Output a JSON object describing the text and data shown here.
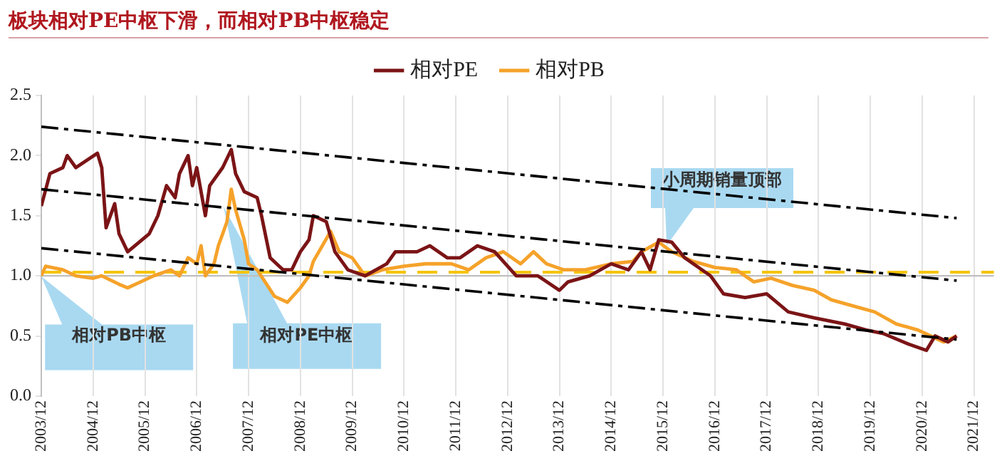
{
  "chart_data": {
    "type": "line",
    "title": "板块相对PE中枢下滑，而相对PB中枢稳定",
    "xlim": [
      "2003-12",
      "2021-12"
    ],
    "xticks": [
      {
        "value": "2003-12",
        "label": "2003/12"
      },
      {
        "value": "2004-12",
        "label": "2004/12"
      },
      {
        "value": "2005-12",
        "label": "2005/12"
      },
      {
        "value": "2006-12",
        "label": "2006/12"
      },
      {
        "value": "2007-12",
        "label": "2007/12"
      },
      {
        "value": "2008-12",
        "label": "2008/12"
      },
      {
        "value": "2009-12",
        "label": "2009/12"
      },
      {
        "value": "2010-12",
        "label": "2010/12"
      },
      {
        "value": "2011-12",
        "label": "2011/12"
      },
      {
        "value": "2012-12",
        "label": "2012/12"
      },
      {
        "value": "2013-12",
        "label": "2013/12"
      },
      {
        "value": "2014-12",
        "label": "2014/12"
      },
      {
        "value": "2015-12",
        "label": "2015/12"
      },
      {
        "value": "2016-12",
        "label": "2016/12"
      },
      {
        "value": "2017-12",
        "label": "2017/12"
      },
      {
        "value": "2018-12",
        "label": "2018/12"
      },
      {
        "value": "2019-12",
        "label": "2019/12"
      },
      {
        "value": "2020-12",
        "label": "2020/12"
      },
      {
        "value": "2021-12",
        "label": "2021/12"
      }
    ],
    "ylim": [
      0,
      2.5
    ],
    "yticks": [
      {
        "value": 0,
        "label": "0.0"
      },
      {
        "value": 0.5,
        "label": "0.5"
      },
      {
        "value": 1,
        "label": "1.0"
      },
      {
        "value": 1.5,
        "label": "1.5"
      },
      {
        "value": 2,
        "label": "2.0"
      },
      {
        "value": 2.5,
        "label": "2.5"
      }
    ],
    "grid": "x",
    "legend": "top",
    "marker": "none",
    "series": [
      {
        "name": "相对PE",
        "color": "#7b1416",
        "x": [
          "2003-12",
          "2004-02",
          "2004-05",
          "2004-06",
          "2004-08",
          "2005-01",
          "2005-02",
          "2005-03",
          "2005-05",
          "2005-06",
          "2005-08",
          "2006-01",
          "2006-03",
          "2006-05",
          "2006-07",
          "2006-08",
          "2006-10",
          "2006-11",
          "2006-12",
          "2007-02",
          "2007-03",
          "2007-06",
          "2007-08",
          "2007-09",
          "2007-11",
          "2008-02",
          "2008-03",
          "2008-05",
          "2008-08",
          "2008-10",
          "2008-12",
          "2009-02",
          "2009-03",
          "2009-06",
          "2009-08",
          "2009-11",
          "2010-03",
          "2010-08",
          "2010-10",
          "2011-03",
          "2011-06",
          "2011-10",
          "2012-01",
          "2012-05",
          "2012-09",
          "2013-02",
          "2013-07",
          "2013-12",
          "2014-02",
          "2014-07",
          "2014-12",
          "2015-04",
          "2015-07",
          "2015-09",
          "2015-11",
          "2016-02",
          "2016-05",
          "2016-11",
          "2017-02",
          "2017-07",
          "2017-12",
          "2018-05",
          "2018-11",
          "2019-06",
          "2019-11",
          "2020-03",
          "2020-09",
          "2021-01",
          "2021-03",
          "2021-06",
          "2021-08"
        ],
        "values": [
          1.58,
          1.85,
          1.9,
          2.0,
          1.9,
          2.02,
          1.9,
          1.4,
          1.6,
          1.35,
          1.2,
          1.35,
          1.5,
          1.75,
          1.65,
          1.85,
          2.0,
          1.75,
          1.9,
          1.5,
          1.75,
          1.9,
          2.05,
          1.85,
          1.7,
          1.65,
          1.5,
          1.15,
          1.05,
          1.05,
          1.2,
          1.3,
          1.5,
          1.45,
          1.2,
          1.05,
          1.0,
          1.1,
          1.2,
          1.2,
          1.25,
          1.15,
          1.15,
          1.25,
          1.2,
          1.0,
          1.0,
          0.88,
          0.95,
          1.0,
          1.1,
          1.05,
          1.2,
          1.05,
          1.3,
          1.28,
          1.15,
          1.0,
          0.85,
          0.82,
          0.85,
          0.7,
          0.65,
          0.6,
          0.55,
          0.52,
          0.43,
          0.38,
          0.5,
          0.45,
          0.5
        ]
      },
      {
        "name": "相对PB",
        "color": "#f5a22a",
        "x": [
          "2003-12",
          "2004-01",
          "2004-05",
          "2004-08",
          "2004-12",
          "2005-02",
          "2005-06",
          "2005-08",
          "2005-11",
          "2006-02",
          "2006-06",
          "2006-08",
          "2006-10",
          "2006-12",
          "2007-01",
          "2007-02",
          "2007-04",
          "2007-05",
          "2007-07",
          "2007-08",
          "2007-09",
          "2007-11",
          "2007-12",
          "2008-02",
          "2008-06",
          "2008-09",
          "2008-12",
          "2009-02",
          "2009-03",
          "2009-07",
          "2009-09",
          "2009-12",
          "2010-03",
          "2010-07",
          "2010-12",
          "2011-05",
          "2011-11",
          "2012-03",
          "2012-07",
          "2012-11",
          "2013-03",
          "2013-06",
          "2013-09",
          "2014-01",
          "2014-06",
          "2014-12",
          "2015-05",
          "2015-07",
          "2015-11",
          "2016-02",
          "2016-07",
          "2016-12",
          "2017-05",
          "2017-09",
          "2018-01",
          "2018-06",
          "2018-11",
          "2019-03",
          "2019-08",
          "2020-01",
          "2020-06",
          "2020-11",
          "2021-02",
          "2021-05",
          "2021-08"
        ],
        "values": [
          1.0,
          1.08,
          1.05,
          1.0,
          0.98,
          1.0,
          0.93,
          0.9,
          0.95,
          1.0,
          1.05,
          1.0,
          1.15,
          1.1,
          1.25,
          1.0,
          1.1,
          1.25,
          1.45,
          1.72,
          1.55,
          1.3,
          1.1,
          1.05,
          0.83,
          0.78,
          0.9,
          1.0,
          1.12,
          1.37,
          1.2,
          1.15,
          1.0,
          1.05,
          1.08,
          1.1,
          1.1,
          1.05,
          1.15,
          1.2,
          1.1,
          1.2,
          1.1,
          1.05,
          1.05,
          1.1,
          1.12,
          1.2,
          1.28,
          1.2,
          1.12,
          1.07,
          1.05,
          0.95,
          0.98,
          0.92,
          0.88,
          0.8,
          0.75,
          0.7,
          0.6,
          0.55,
          0.5,
          0.45,
          0.5
        ]
      },
      {
        "type": "line",
        "color": "#000000",
        "line_style": "dashed",
        "x": [
          "2003-12",
          "2021-08"
        ],
        "values": [
          2.24,
          1.48
        ]
      },
      {
        "type": "line",
        "color": "#000000",
        "line_style": "dashed",
        "x": [
          "2003-12",
          "2021-08"
        ],
        "values": [
          1.72,
          0.96
        ]
      },
      {
        "type": "line",
        "color": "#000000",
        "line_style": "dashed",
        "x": [
          "2003-12",
          "2021-08"
        ],
        "values": [
          1.23,
          0.47
        ]
      }
    ],
    "ref_lines": [
      {
        "axis": "y",
        "value": 1.0,
        "color": "#bfbfbf",
        "line_style": "solid"
      },
      {
        "axis": "y",
        "value": 1.03,
        "color": "#f5c400",
        "line_style": "dashed"
      }
    ],
    "annotations": [
      "相对PB中枢",
      "相对PE中枢",
      "小周期销量顶部"
    ]
  }
}
